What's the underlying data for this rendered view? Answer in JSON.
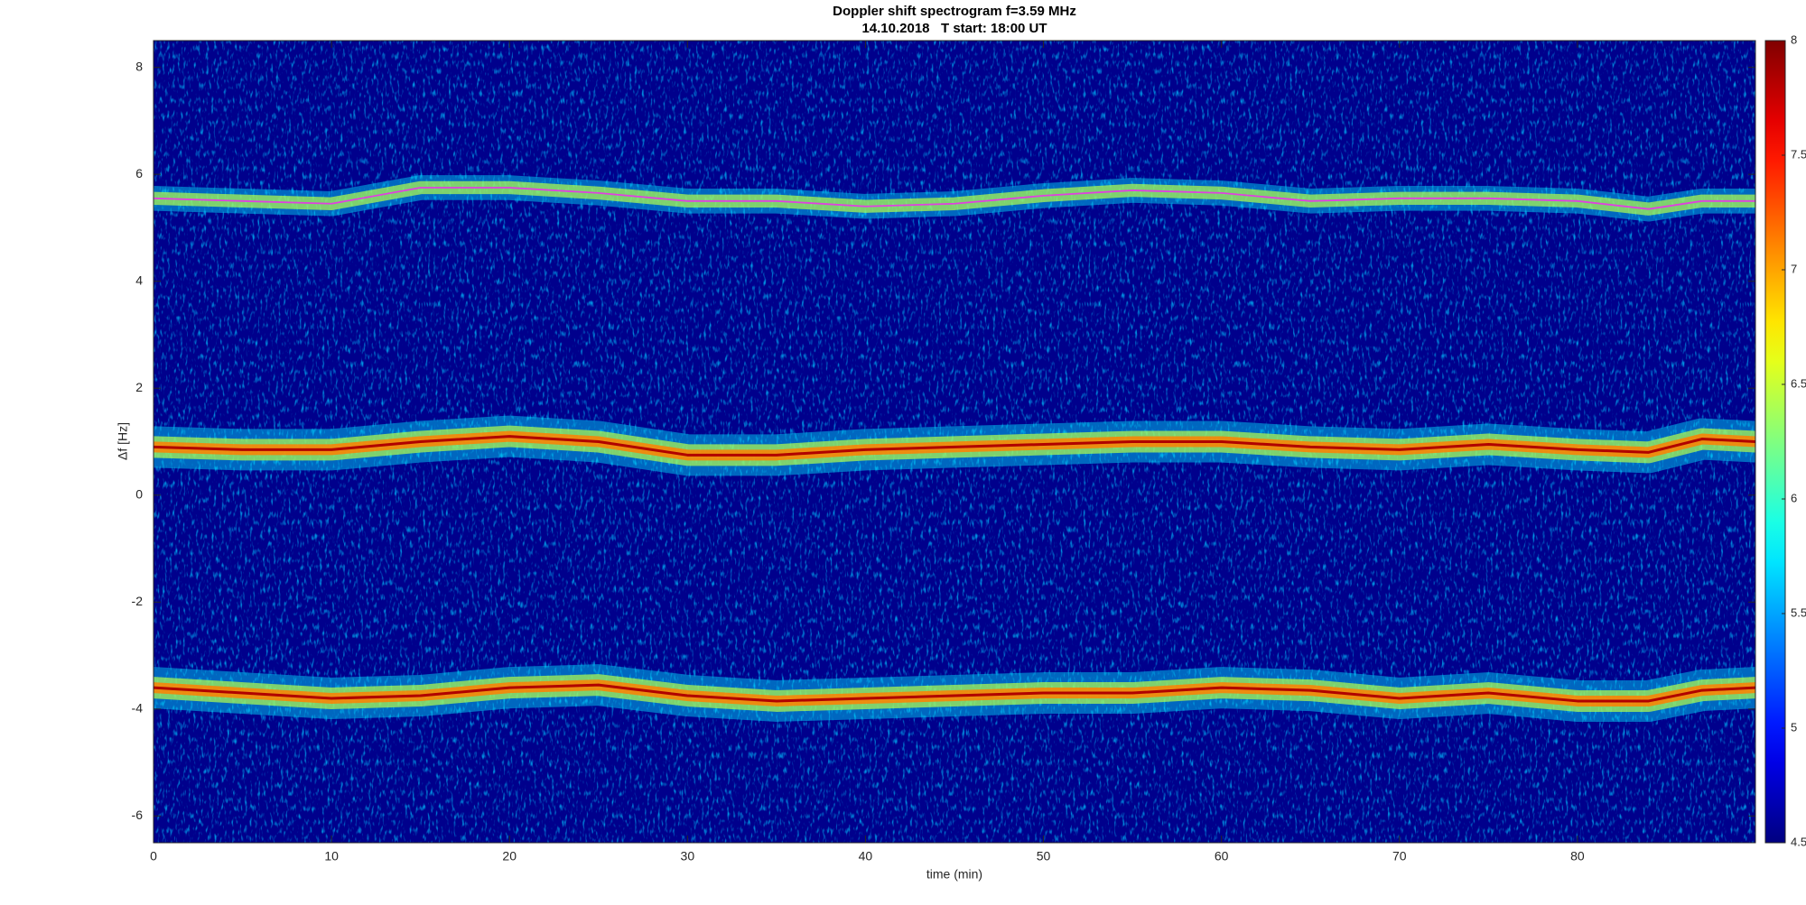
{
  "chart_data": {
    "type": "spectrogram",
    "title": "Doppler shift spectrogram f=3.59 MHz",
    "subtitle": "14.10.2018   T start: 18:00 UT",
    "xlabel": "time (min)",
    "ylabel": "Δf [Hz]",
    "xlim": [
      0,
      90
    ],
    "xticks": [
      0,
      10,
      20,
      30,
      40,
      50,
      60,
      70,
      80
    ],
    "ylim": [
      -6.5,
      8.5
    ],
    "yticks": [
      -6,
      -4,
      -2,
      0,
      2,
      4,
      6,
      8
    ],
    "colormap": "jet",
    "clim": [
      4.5,
      8
    ],
    "cticks": [
      4.5,
      5,
      5.5,
      6,
      6.5,
      7,
      7.5,
      8
    ],
    "x": [
      0,
      5,
      10,
      15,
      20,
      25,
      30,
      35,
      40,
      45,
      50,
      55,
      60,
      65,
      70,
      75,
      80,
      84,
      87,
      90
    ],
    "series": [
      {
        "color": "#e040e0",
        "values": [
          5.55,
          5.5,
          5.45,
          5.75,
          5.75,
          5.65,
          5.5,
          5.5,
          5.4,
          5.45,
          5.6,
          5.7,
          5.65,
          5.5,
          5.55,
          5.55,
          5.5,
          5.35,
          5.5,
          5.5
        ]
      },
      {
        "color": "#b00000",
        "values": [
          0.9,
          0.85,
          0.85,
          1.0,
          1.1,
          1.0,
          0.75,
          0.75,
          0.85,
          0.9,
          0.95,
          1.0,
          1.0,
          0.9,
          0.85,
          0.95,
          0.85,
          0.8,
          1.05,
          1.0
        ]
      },
      {
        "color": "#b00000",
        "values": [
          -3.6,
          -3.7,
          -3.8,
          -3.75,
          -3.6,
          -3.55,
          -3.75,
          -3.85,
          -3.8,
          -3.75,
          -3.7,
          -3.7,
          -3.6,
          -3.65,
          -3.8,
          -3.7,
          -3.85,
          -3.85,
          -3.65,
          -3.6
        ]
      }
    ]
  }
}
